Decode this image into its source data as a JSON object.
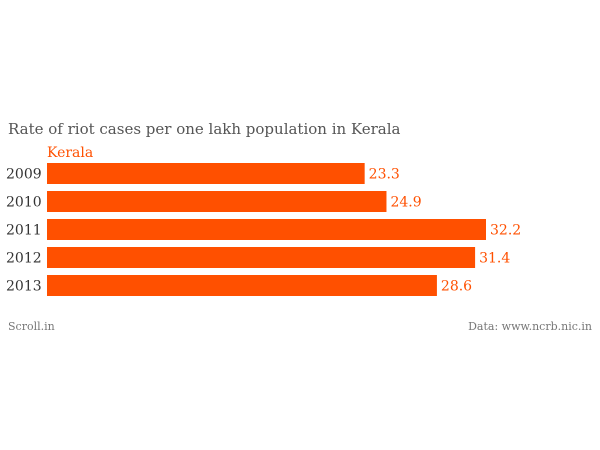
{
  "footer": {
    "source_left": "Scroll.in",
    "source_right": "Data: www.ncrb.nic.in"
  },
  "colors": {
    "bar": "#ff5000",
    "label": "#ff5000"
  },
  "chart_data": {
    "type": "bar",
    "orientation": "horizontal",
    "title": "Rate of riot cases per one lakh population in Kerala",
    "categories": [
      "2009",
      "2010",
      "2011",
      "2012",
      "2013"
    ],
    "series": [
      {
        "name": "Kerala",
        "values": [
          23.3,
          24.9,
          32.2,
          31.4,
          28.6
        ]
      }
    ],
    "xlim": [
      0,
      32.2
    ],
    "grid": false,
    "legend": "top-left"
  }
}
